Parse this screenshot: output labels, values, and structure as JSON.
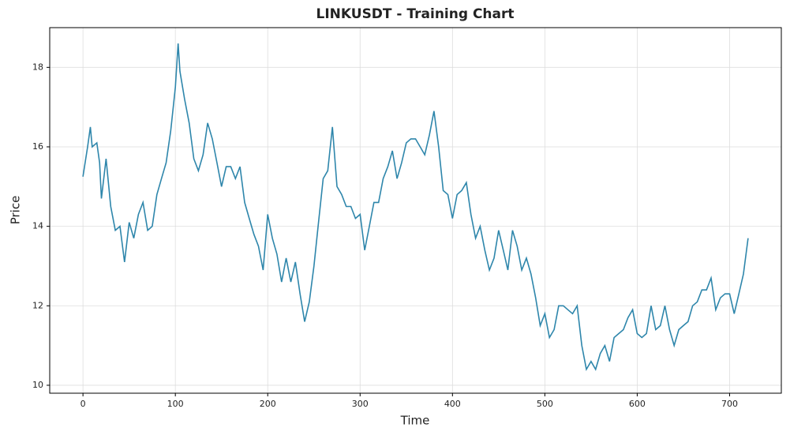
{
  "chart_data": {
    "type": "line",
    "title": "LINKUSDT - Training Chart",
    "x_label": "Time",
    "y_label": "Price",
    "x": [
      0,
      5,
      8,
      10,
      15,
      18,
      20,
      25,
      30,
      35,
      40,
      45,
      50,
      55,
      60,
      65,
      70,
      75,
      80,
      85,
      90,
      95,
      100,
      103,
      105,
      110,
      115,
      120,
      125,
      130,
      135,
      140,
      145,
      150,
      155,
      160,
      165,
      170,
      175,
      180,
      185,
      190,
      195,
      200,
      205,
      210,
      215,
      220,
      225,
      230,
      235,
      240,
      245,
      250,
      255,
      260,
      265,
      270,
      275,
      280,
      285,
      290,
      295,
      300,
      305,
      310,
      315,
      320,
      325,
      330,
      335,
      340,
      345,
      350,
      355,
      360,
      365,
      370,
      375,
      380,
      385,
      390,
      395,
      400,
      405,
      410,
      415,
      420,
      425,
      430,
      435,
      440,
      445,
      450,
      455,
      460,
      465,
      470,
      475,
      480,
      485,
      490,
      495,
      500,
      505,
      510,
      515,
      520,
      525,
      530,
      535,
      540,
      545,
      550,
      555,
      560,
      565,
      570,
      575,
      580,
      585,
      590,
      595,
      600,
      605,
      610,
      615,
      620,
      625,
      630,
      635,
      640,
      645,
      650,
      655,
      660,
      665,
      670,
      675,
      680,
      685,
      690,
      695,
      700,
      705,
      710,
      715,
      720
    ],
    "series": [
      {
        "name": "Price",
        "color": "#2e86ab",
        "values": [
          15.25,
          16.0,
          16.5,
          16.0,
          16.1,
          15.6,
          14.7,
          15.7,
          14.5,
          13.9,
          14.0,
          13.1,
          14.1,
          13.7,
          14.3,
          14.6,
          13.9,
          14.0,
          14.8,
          15.2,
          15.6,
          16.4,
          17.5,
          18.6,
          17.9,
          17.2,
          16.6,
          15.7,
          15.4,
          15.8,
          16.6,
          16.2,
          15.6,
          15.0,
          15.5,
          15.5,
          15.2,
          15.5,
          14.6,
          14.2,
          13.8,
          13.5,
          12.9,
          14.3,
          13.7,
          13.3,
          12.6,
          13.2,
          12.6,
          13.1,
          12.3,
          11.6,
          12.1,
          13.0,
          14.1,
          15.2,
          15.4,
          16.5,
          15.0,
          14.8,
          14.5,
          14.5,
          14.2,
          14.3,
          13.4,
          14.0,
          14.6,
          14.6,
          15.2,
          15.5,
          15.9,
          15.2,
          15.6,
          16.1,
          16.2,
          16.2,
          16.0,
          15.8,
          16.3,
          16.9,
          16.0,
          14.9,
          14.8,
          14.2,
          14.8,
          14.9,
          15.1,
          14.3,
          13.7,
          14.0,
          13.4,
          12.9,
          13.2,
          13.9,
          13.4,
          12.9,
          13.9,
          13.5,
          12.9,
          13.2,
          12.8,
          12.2,
          11.5,
          11.8,
          11.2,
          11.4,
          12.0,
          12.0,
          11.9,
          11.8,
          12.0,
          11.0,
          10.4,
          10.6,
          10.4,
          10.8,
          11.0,
          10.6,
          11.2,
          11.3,
          11.4,
          11.7,
          11.9,
          11.3,
          11.2,
          11.3,
          12.0,
          11.4,
          11.5,
          12.0,
          11.4,
          11.0,
          11.4,
          11.5,
          11.6,
          12.0,
          12.1,
          12.4,
          12.4,
          12.7,
          11.9,
          12.2,
          12.3,
          12.3,
          11.8,
          12.3,
          12.8,
          13.7
        ]
      }
    ],
    "xlim": [
      -36,
      756
    ],
    "ylim": [
      9.8,
      19.0
    ],
    "xticks": [
      0,
      100,
      200,
      300,
      400,
      500,
      600,
      700
    ],
    "yticks": [
      10,
      12,
      14,
      16,
      18
    ],
    "grid": true
  }
}
